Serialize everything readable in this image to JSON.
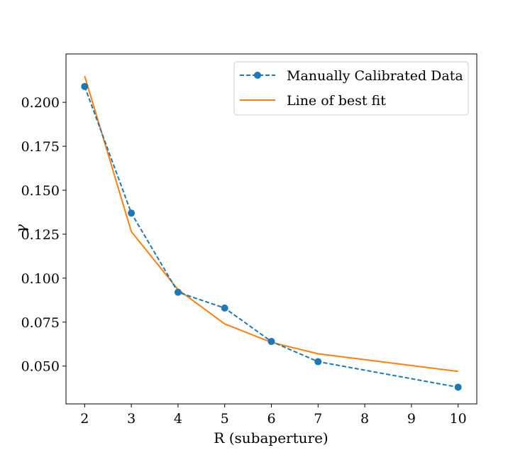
{
  "chart_data": {
    "type": "line",
    "title": "",
    "xlabel": "R (subaperture)",
    "ylabel": "γ",
    "xlim": [
      1.6,
      10.4
    ],
    "ylim": [
      0.0285,
      0.2275
    ],
    "xticks": [
      2,
      3,
      4,
      5,
      6,
      7,
      8,
      9,
      10
    ],
    "xtick_labels": [
      "2",
      "3",
      "4",
      "5",
      "6",
      "7",
      "8",
      "9",
      "10"
    ],
    "yticks": [
      0.05,
      0.075,
      0.1,
      0.125,
      0.15,
      0.175,
      0.2
    ],
    "ytick_labels": [
      "0.050",
      "0.075",
      "0.100",
      "0.125",
      "0.150",
      "0.175",
      "0.200"
    ],
    "grid": false,
    "legend_position": "top-right",
    "series": [
      {
        "name": "Manually Calibrated Data",
        "style": "dashed-markers",
        "color": "#1f77b4",
        "x": [
          2,
          3,
          4,
          5,
          6,
          7,
          10
        ],
        "y": [
          0.209,
          0.137,
          0.092,
          0.083,
          0.064,
          0.0525,
          0.038
        ]
      },
      {
        "name": "Line of best fit",
        "style": "solid",
        "color": "#ff7f0e",
        "x": [
          2,
          3,
          4,
          5,
          6,
          7,
          10
        ],
        "y": [
          0.215,
          0.1265,
          0.0935,
          0.074,
          0.0635,
          0.057,
          0.047
        ]
      }
    ]
  }
}
